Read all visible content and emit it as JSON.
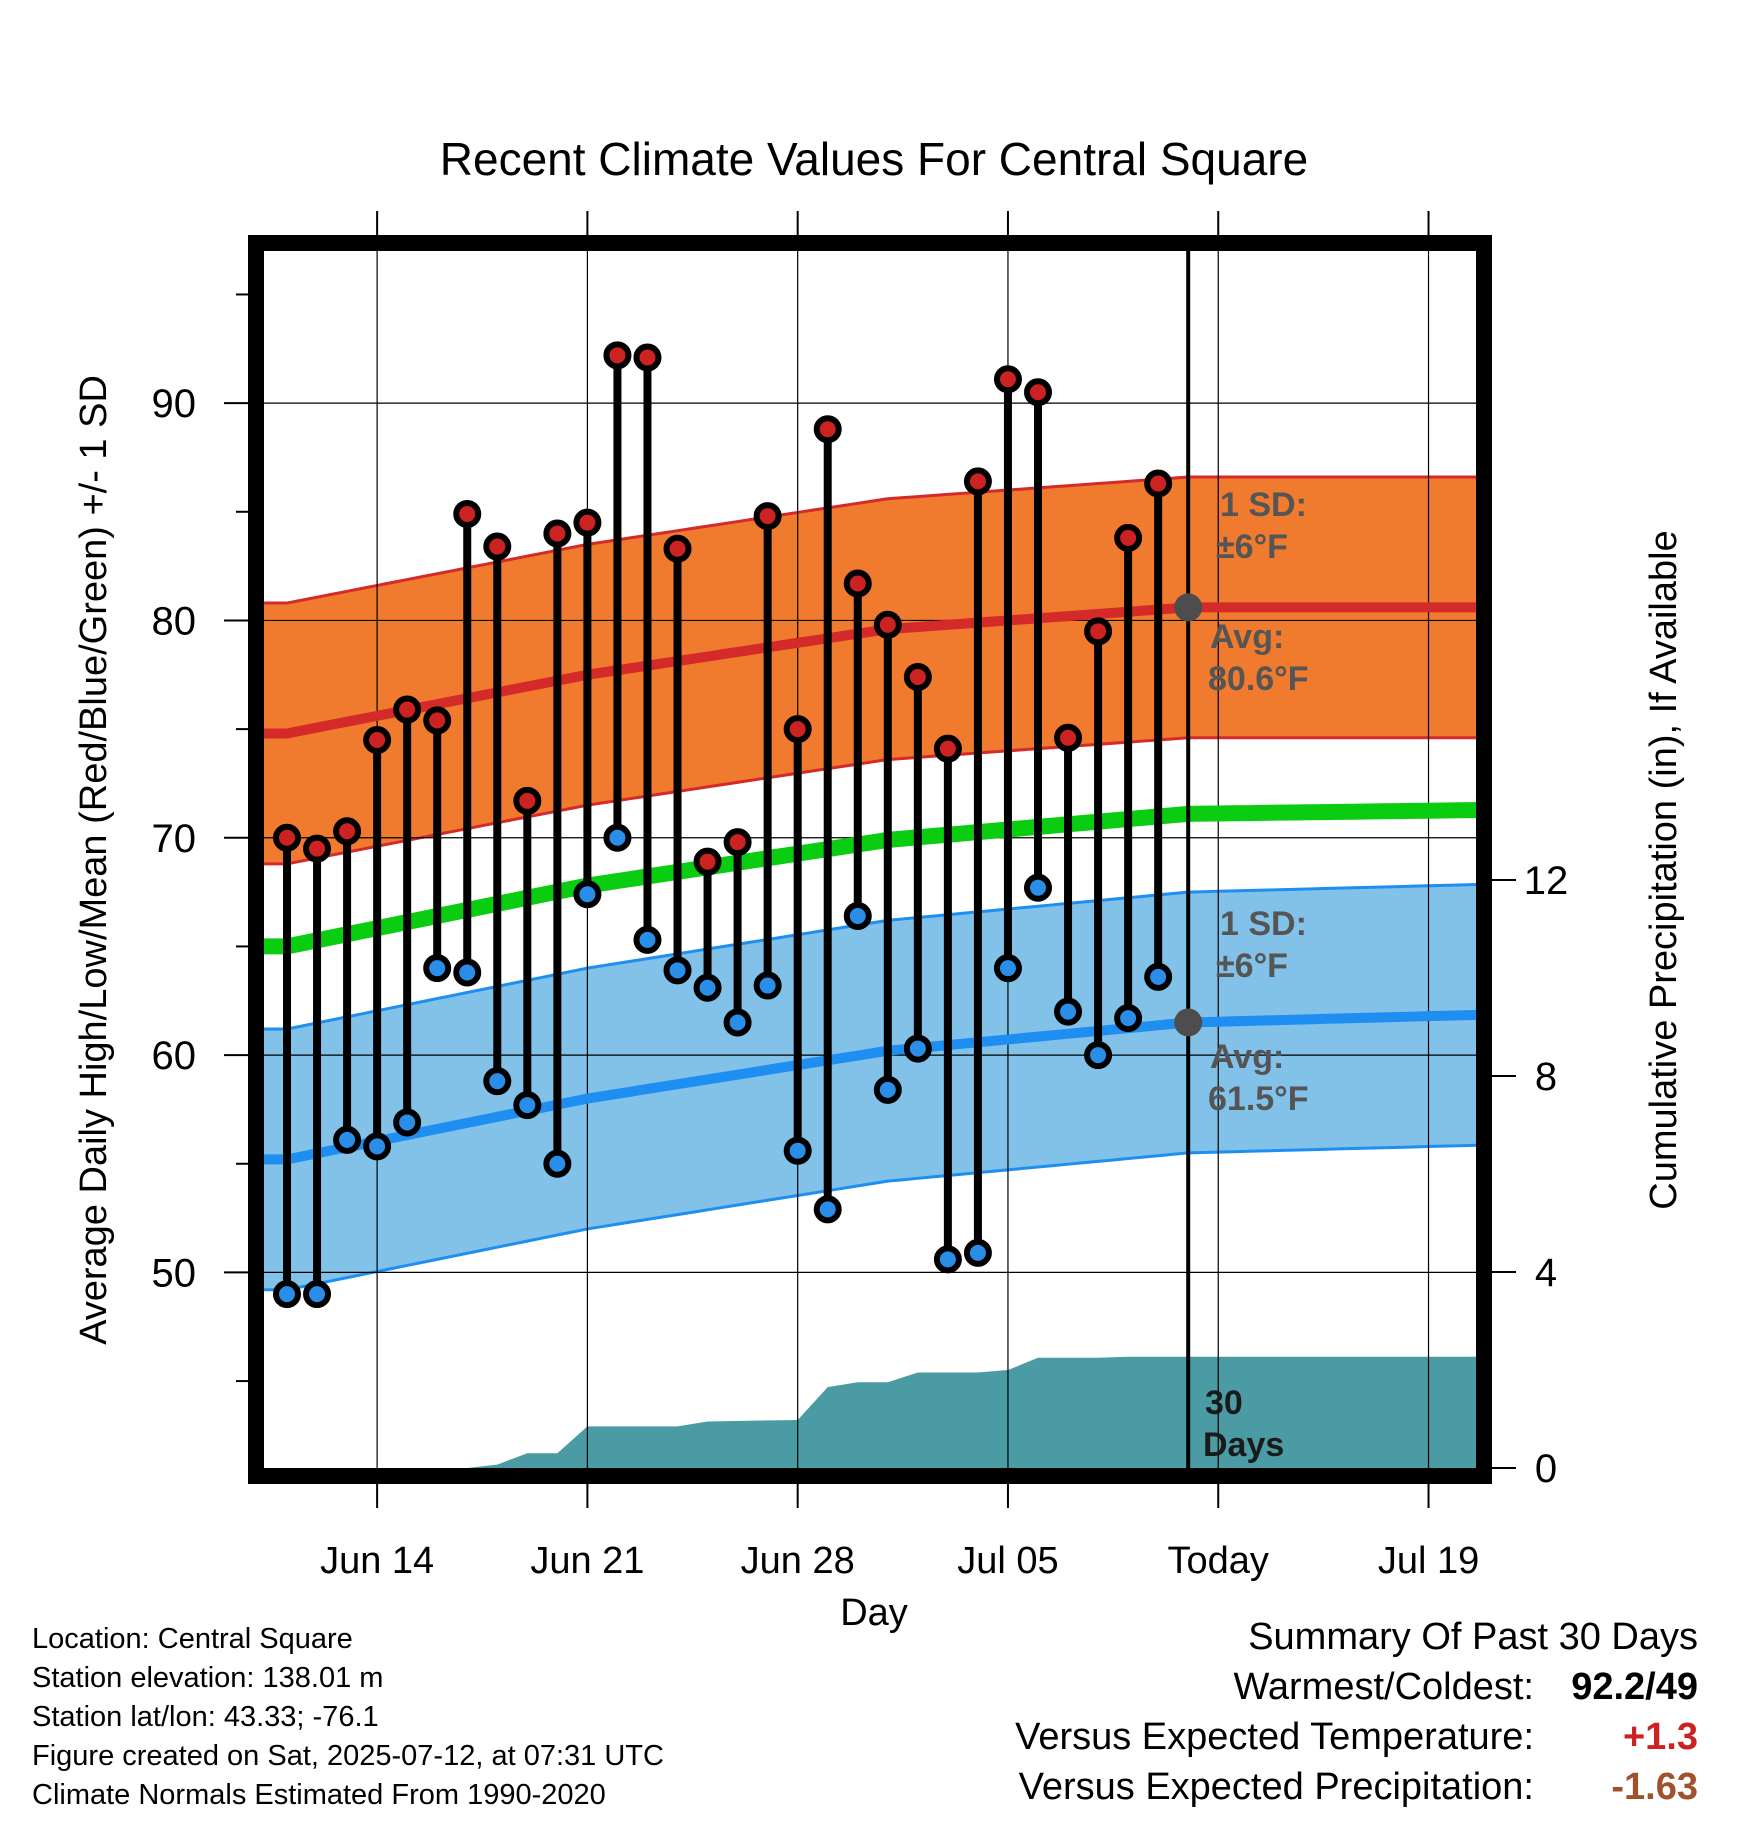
{
  "chart_data": {
    "type": "scatter",
    "title": "Recent Climate Values For Central Square",
    "xlabel": "Day",
    "ylabel": "Average Daily High/Low/Mean (Red/Blue/Green) +/- 1 SD",
    "y2label": "Cumulative Precipitation (in), If Available",
    "x_tick_labels": [
      "Jun 14",
      "Jun 21",
      "Jun 28",
      "Jul 05",
      "Today",
      "Jul 19"
    ],
    "y_ticks": [
      50,
      60,
      70,
      80,
      90
    ],
    "y2_ticks": [
      0,
      4,
      8,
      12
    ],
    "ylim": [
      41,
      97
    ],
    "y2lim": [
      0,
      24
    ],
    "x_dates": [
      "2025-06-11",
      "2025-07-22"
    ],
    "daily_high": [
      {
        "date": "2025-06-11",
        "value": 70.0
      },
      {
        "date": "2025-06-12",
        "value": 69.5
      },
      {
        "date": "2025-06-13",
        "value": 70.3
      },
      {
        "date": "2025-06-14",
        "value": 74.5
      },
      {
        "date": "2025-06-15",
        "value": 75.9
      },
      {
        "date": "2025-06-16",
        "value": 75.4
      },
      {
        "date": "2025-06-17",
        "value": 84.9
      },
      {
        "date": "2025-06-18",
        "value": 83.4
      },
      {
        "date": "2025-06-19",
        "value": 71.7
      },
      {
        "date": "2025-06-20",
        "value": 84.0
      },
      {
        "date": "2025-06-21",
        "value": 84.5
      },
      {
        "date": "2025-06-22",
        "value": 92.2
      },
      {
        "date": "2025-06-23",
        "value": 92.1
      },
      {
        "date": "2025-06-24",
        "value": 83.3
      },
      {
        "date": "2025-06-25",
        "value": 68.9
      },
      {
        "date": "2025-06-26",
        "value": 69.8
      },
      {
        "date": "2025-06-27",
        "value": 84.8
      },
      {
        "date": "2025-06-28",
        "value": 75.0
      },
      {
        "date": "2025-06-29",
        "value": 88.8
      },
      {
        "date": "2025-06-30",
        "value": 81.7
      },
      {
        "date": "2025-07-01",
        "value": 79.8
      },
      {
        "date": "2025-07-02",
        "value": 77.4
      },
      {
        "date": "2025-07-03",
        "value": 74.1
      },
      {
        "date": "2025-07-04",
        "value": 86.4
      },
      {
        "date": "2025-07-05",
        "value": 91.1
      },
      {
        "date": "2025-07-06",
        "value": 90.5
      },
      {
        "date": "2025-07-07",
        "value": 74.6
      },
      {
        "date": "2025-07-08",
        "value": 79.5
      },
      {
        "date": "2025-07-09",
        "value": 83.8
      },
      {
        "date": "2025-07-10",
        "value": 86.3
      }
    ],
    "daily_low": [
      {
        "date": "2025-06-11",
        "value": 49.0
      },
      {
        "date": "2025-06-12",
        "value": 49.0
      },
      {
        "date": "2025-06-13",
        "value": 56.1
      },
      {
        "date": "2025-06-14",
        "value": 55.8
      },
      {
        "date": "2025-06-15",
        "value": 56.9
      },
      {
        "date": "2025-06-16",
        "value": 64.0
      },
      {
        "date": "2025-06-17",
        "value": 63.8
      },
      {
        "date": "2025-06-18",
        "value": 58.8
      },
      {
        "date": "2025-06-19",
        "value": 57.7
      },
      {
        "date": "2025-06-20",
        "value": 55.0
      },
      {
        "date": "2025-06-21",
        "value": 67.4
      },
      {
        "date": "2025-06-22",
        "value": 70.0
      },
      {
        "date": "2025-06-23",
        "value": 65.3
      },
      {
        "date": "2025-06-24",
        "value": 63.9
      },
      {
        "date": "2025-06-25",
        "value": 63.1
      },
      {
        "date": "2025-06-26",
        "value": 61.5
      },
      {
        "date": "2025-06-27",
        "value": 63.2
      },
      {
        "date": "2025-06-28",
        "value": 55.6
      },
      {
        "date": "2025-06-29",
        "value": 52.9
      },
      {
        "date": "2025-06-30",
        "value": 66.4
      },
      {
        "date": "2025-07-01",
        "value": 58.4
      },
      {
        "date": "2025-07-02",
        "value": 60.3
      },
      {
        "date": "2025-07-03",
        "value": 50.6
      },
      {
        "date": "2025-07-04",
        "value": 50.9
      },
      {
        "date": "2025-07-05",
        "value": 64.0
      },
      {
        "date": "2025-07-06",
        "value": 67.7
      },
      {
        "date": "2025-07-07",
        "value": 62.0
      },
      {
        "date": "2025-07-08",
        "value": 60.0
      },
      {
        "date": "2025-07-09",
        "value": 61.7
      },
      {
        "date": "2025-07-10",
        "value": 63.6
      }
    ],
    "normal_high_mean": [
      {
        "date": "2025-06-11",
        "value": 74.8
      },
      {
        "date": "2025-06-21",
        "value": 77.5
      },
      {
        "date": "2025-07-01",
        "value": 79.6
      },
      {
        "date": "2025-07-11",
        "value": 80.6
      },
      {
        "date": "2025-07-22",
        "value": 80.6
      }
    ],
    "normal_high_sd": 6,
    "normal_low_mean": [
      {
        "date": "2025-06-11",
        "value": 55.2
      },
      {
        "date": "2025-06-21",
        "value": 58.0
      },
      {
        "date": "2025-07-01",
        "value": 60.2
      },
      {
        "date": "2025-07-11",
        "value": 61.5
      },
      {
        "date": "2025-07-22",
        "value": 61.9
      }
    ],
    "normal_low_sd": 6,
    "normal_mean": [
      {
        "date": "2025-06-11",
        "value": 65.0
      },
      {
        "date": "2025-06-21",
        "value": 67.8
      },
      {
        "date": "2025-07-01",
        "value": 69.9
      },
      {
        "date": "2025-07-11",
        "value": 71.1
      },
      {
        "date": "2025-07-22",
        "value": 71.3
      }
    ],
    "cumulative_precip": [
      {
        "date": "2025-06-11",
        "value": 0.0
      },
      {
        "date": "2025-06-17",
        "value": 0.0
      },
      {
        "date": "2025-06-18",
        "value": 0.07
      },
      {
        "date": "2025-06-19",
        "value": 0.3
      },
      {
        "date": "2025-06-20",
        "value": 0.3
      },
      {
        "date": "2025-06-21",
        "value": 0.85
      },
      {
        "date": "2025-06-24",
        "value": 0.85
      },
      {
        "date": "2025-06-25",
        "value": 0.95
      },
      {
        "date": "2025-06-28",
        "value": 0.98
      },
      {
        "date": "2025-06-29",
        "value": 1.65
      },
      {
        "date": "2025-06-30",
        "value": 1.75
      },
      {
        "date": "2025-07-01",
        "value": 1.75
      },
      {
        "date": "2025-07-02",
        "value": 1.95
      },
      {
        "date": "2025-07-04",
        "value": 1.95
      },
      {
        "date": "2025-07-05",
        "value": 2.0
      },
      {
        "date": "2025-07-06",
        "value": 2.25
      },
      {
        "date": "2025-07-08",
        "value": 2.25
      },
      {
        "date": "2025-07-09",
        "value": 2.27
      },
      {
        "date": "2025-07-22",
        "value": 2.27
      }
    ],
    "today": "2025-07-11",
    "annotations": {
      "high_sd_line1": "1 SD:",
      "high_sd_line2": "±6°F",
      "high_avg_line1": "Avg:",
      "high_avg_line2": "80.6°F",
      "low_sd_line1": "1 SD:",
      "low_sd_line2": "±6°F",
      "low_avg_line1": "Avg:",
      "low_avg_line2": "61.5°F",
      "precip_line1": "30",
      "precip_line2": "Days"
    },
    "colors": {
      "high_band": "#f07a2e",
      "high_line": "#d42a2a",
      "low_band": "#82c1e8",
      "low_line": "#1e8ff0",
      "mean_line": "#0acc10",
      "precip": "#4a9ba3",
      "high_dot": "#cc2222",
      "low_dot": "#2a8ee8",
      "normal_marker": "#4d4d4d"
    }
  },
  "info": {
    "location": "Location: Central Square",
    "elevation": "Station elevation: 138.01 m",
    "latlon": "Station lat/lon: 43.33; -76.1",
    "created": "Figure created on Sat, 2025-07-12, at 07:31 UTC",
    "normals": "Climate Normals Estimated From 1990-2020"
  },
  "summary": {
    "title": "Summary Of Past 30 Days",
    "warmest_label": "Warmest/Coldest:",
    "warmest_value": "92.2/49",
    "temp_label": "Versus Expected Temperature:",
    "temp_value": "+1.3",
    "temp_color": "#cc2222",
    "precip_label": "Versus Expected Precipitation:",
    "precip_value": "-1.63",
    "precip_color": "#a0522d"
  }
}
